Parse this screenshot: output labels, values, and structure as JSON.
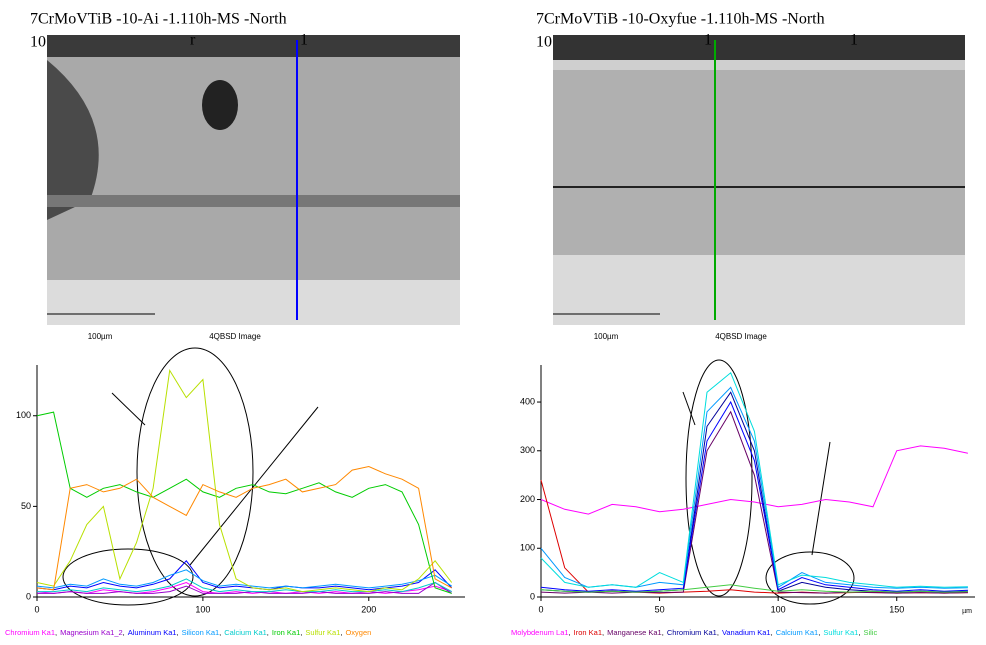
{
  "chart_data": [
    {
      "type": "line",
      "title": "7CrMoVTiB   -10-Ai   -1.110h-MS  -North",
      "subtitle": "10",
      "image_marks": [
        "r",
        "1"
      ],
      "scale_bar": "100µm",
      "image_label": "4QBSD Image",
      "x": [
        0,
        10,
        20,
        30,
        40,
        50,
        60,
        70,
        80,
        90,
        100,
        110,
        120,
        130,
        140,
        150,
        160,
        170,
        180,
        190,
        200,
        210,
        220,
        230,
        240,
        250
      ],
      "xlim": [
        0,
        258
      ],
      "ylim": [
        0,
        128
      ],
      "xticks": [
        0,
        100,
        200
      ],
      "yticks": [
        0,
        50,
        100
      ],
      "legend_separator": ",",
      "series": [
        {
          "name": "Chromium Ka1",
          "color": "#ff00ff",
          "values": [
            3,
            2,
            3,
            2,
            4,
            3,
            2,
            3,
            5,
            8,
            3,
            2,
            3,
            2,
            3,
            2,
            3,
            2,
            3,
            2,
            3,
            2,
            3,
            4,
            6,
            3
          ]
        },
        {
          "name": "Magnesium Ka1_2",
          "color": "#9900cc",
          "values": [
            2,
            2,
            3,
            2,
            2,
            3,
            2,
            2,
            3,
            6,
            2,
            2,
            2,
            3,
            2,
            2,
            2,
            3,
            2,
            2,
            2,
            3,
            2,
            2,
            8,
            2
          ]
        },
        {
          "name": "Aluminum Ka1",
          "color": "#0000ff",
          "values": [
            5,
            4,
            6,
            5,
            8,
            6,
            5,
            7,
            10,
            20,
            8,
            5,
            6,
            5,
            4,
            6,
            5,
            5,
            6,
            5,
            4,
            5,
            6,
            8,
            15,
            5
          ]
        },
        {
          "name": "Silicon Ka1",
          "color": "#0099ff",
          "values": [
            6,
            5,
            7,
            6,
            10,
            7,
            6,
            8,
            12,
            15,
            9,
            6,
            7,
            6,
            5,
            6,
            5,
            6,
            7,
            6,
            5,
            6,
            7,
            9,
            12,
            6
          ]
        },
        {
          "name": "Calcium Ka1",
          "color": "#00cccc",
          "values": [
            3,
            3,
            4,
            3,
            5,
            4,
            3,
            4,
            6,
            10,
            5,
            3,
            4,
            3,
            3,
            4,
            3,
            3,
            4,
            3,
            3,
            4,
            3,
            5,
            8,
            3
          ]
        },
        {
          "name": "Iron Ka1",
          "color": "#00cc00",
          "values": [
            100,
            102,
            60,
            55,
            60,
            62,
            58,
            55,
            60,
            65,
            58,
            55,
            60,
            62,
            58,
            57,
            60,
            63,
            58,
            55,
            60,
            62,
            58,
            40,
            5,
            2
          ]
        },
        {
          "name": "Sulfur Ka1",
          "color": "#b8e000",
          "values": [
            8,
            6,
            20,
            40,
            50,
            10,
            30,
            60,
            125,
            110,
            120,
            40,
            10,
            5,
            4,
            5,
            3,
            4,
            5,
            4,
            3,
            5,
            4,
            10,
            20,
            8
          ]
        },
        {
          "name": "Oxygen",
          "color": "#ff8800",
          "values": [
            5,
            4,
            60,
            62,
            58,
            60,
            65,
            55,
            50,
            45,
            62,
            58,
            55,
            60,
            62,
            65,
            58,
            60,
            62,
            70,
            72,
            68,
            65,
            60,
            10,
            5
          ]
        }
      ]
    },
    {
      "type": "line",
      "title": "7CrMoVTiB   -10-Oxyfue -1.110h-MS  -North",
      "subtitle": "10",
      "image_marks": [
        "1",
        "1"
      ],
      "scale_bar": "100µm",
      "image_label": "4QBSD Image",
      "x_unit": "µm",
      "x": [
        0,
        10,
        20,
        30,
        40,
        50,
        60,
        70,
        80,
        90,
        100,
        110,
        120,
        130,
        140,
        150,
        160,
        170,
        180
      ],
      "xlim": [
        0,
        183
      ],
      "ylim": [
        0,
        476
      ],
      "xticks": [
        0,
        50,
        100,
        150
      ],
      "yticks": [
        0,
        100,
        200,
        300,
        400
      ],
      "legend_separator": ",",
      "series": [
        {
          "name": "Molybdenum La1",
          "color": "#ff00ff",
          "values": [
            200,
            180,
            170,
            190,
            185,
            175,
            180,
            190,
            200,
            195,
            185,
            190,
            200,
            195,
            185,
            300,
            310,
            305,
            295
          ]
        },
        {
          "name": "Iron Ka1",
          "color": "#dd0000",
          "values": [
            240,
            60,
            10,
            12,
            10,
            8,
            10,
            12,
            15,
            10,
            8,
            10,
            8,
            9,
            10,
            8,
            9,
            8,
            9
          ]
        },
        {
          "name": "Manganese Ka1",
          "color": "#660066",
          "values": [
            10,
            8,
            10,
            8,
            10,
            9,
            10,
            300,
            380,
            250,
            10,
            9,
            8,
            10,
            9,
            8,
            9,
            8,
            9
          ]
        },
        {
          "name": "Chromium Ka1",
          "color": "#000099",
          "values": [
            15,
            12,
            10,
            12,
            10,
            12,
            15,
            350,
            420,
            300,
            12,
            30,
            20,
            15,
            12,
            10,
            12,
            10,
            12
          ]
        },
        {
          "name": "Vanadium Ka1",
          "color": "#0000ff",
          "values": [
            20,
            15,
            12,
            15,
            12,
            15,
            18,
            320,
            400,
            280,
            15,
            40,
            25,
            20,
            15,
            12,
            15,
            12,
            14
          ]
        },
        {
          "name": "Calcium Ka1",
          "color": "#0099ff",
          "values": [
            100,
            40,
            20,
            25,
            20,
            30,
            25,
            380,
            430,
            320,
            20,
            50,
            30,
            25,
            20,
            18,
            20,
            18,
            19
          ]
        },
        {
          "name": "Sulfur Ka1",
          "color": "#00dddd",
          "values": [
            80,
            30,
            20,
            25,
            20,
            50,
            30,
            420,
            460,
            340,
            25,
            45,
            40,
            30,
            25,
            20,
            22,
            20,
            21
          ]
        },
        {
          "name": "Silic",
          "color": "#44cc44",
          "values": [
            15,
            12,
            10,
            12,
            10,
            12,
            15,
            20,
            25,
            18,
            12,
            15,
            12,
            10,
            12,
            10,
            12,
            10,
            11
          ]
        }
      ]
    }
  ]
}
